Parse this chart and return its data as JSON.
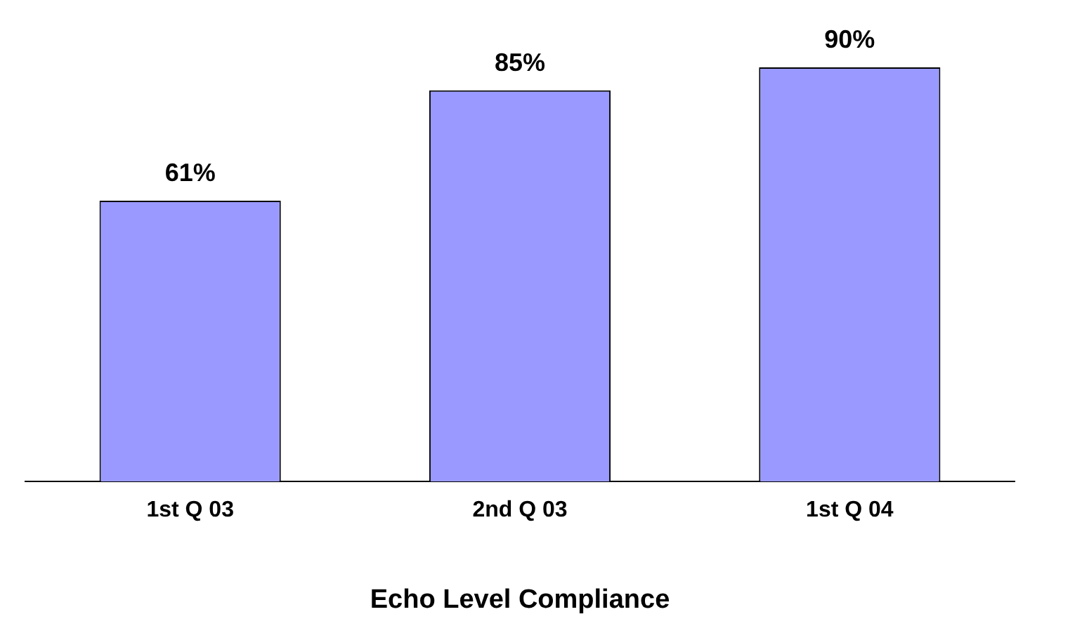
{
  "chart_data": {
    "type": "bar",
    "xlabel": "Echo Level Compliance",
    "categories": [
      "1st Q 03",
      "2nd Q 03",
      "1st Q 04"
    ],
    "values": [
      61,
      85,
      90
    ],
    "color": "#9999ff",
    "value_labels": [
      "61%",
      "85%",
      "90%"
    ],
    "grid": false,
    "legend": false
  }
}
